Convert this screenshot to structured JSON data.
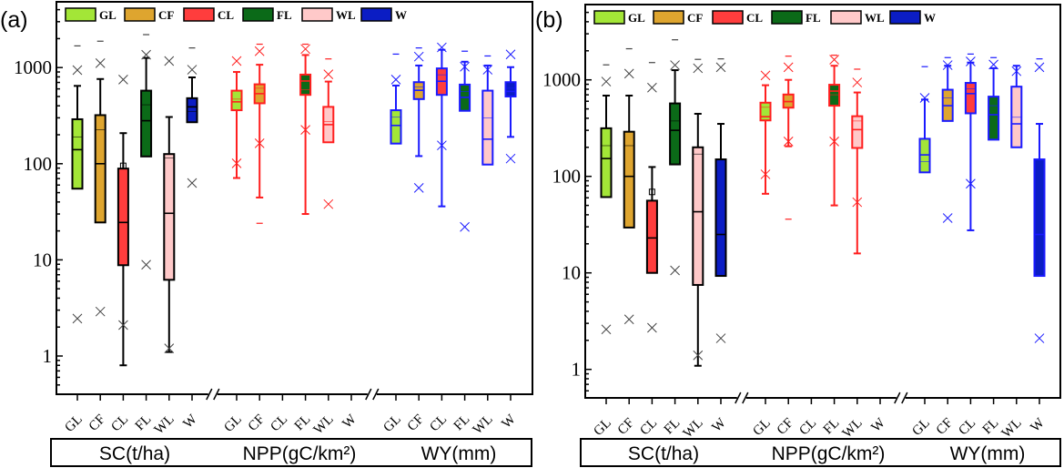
{
  "colors": {
    "GL": "#a3e637",
    "CF": "#dea52f",
    "CL": "#ff3d3d",
    "FL": "#0b6a18",
    "WL": "#ffc9c9",
    "W": "#0b1dc4"
  },
  "outline_colors": {
    "SC(t/ha)": "#000000",
    "NPP(gC/km²)": "#ff1f1f",
    "WY(mm)": "#1a1aff"
  },
  "legend": [
    "GL",
    "CF",
    "CL",
    "FL",
    "WL",
    "W"
  ],
  "chart_data": [
    {
      "type": "box",
      "panel_label": "(a)",
      "yscale": "log",
      "ylim": [
        0.4,
        5000
      ],
      "yticks": [
        "1",
        "10",
        "100",
        "1000"
      ],
      "legend_placement": "top",
      "groups": [
        {
          "label": "SC(t/ha)",
          "items": [
            {
              "category": "GL",
              "whisker_low": 55,
              "q1": 55,
              "median": 140,
              "mean": 190,
              "q3": 290,
              "whisker_high": 645,
              "x_marks": [
                940,
                2.45
              ],
              "dash_marks": [
                1680
              ]
            },
            {
              "category": "CF",
              "whisker_low": 24.5,
              "q1": 24.5,
              "median": 100,
              "mean": 225,
              "q3": 320,
              "whisker_high": 760,
              "x_marks": [
                1110,
                2.9
              ],
              "dash_marks": [
                1880
              ]
            },
            {
              "category": "CL",
              "whisker_low": 0.8,
              "q1": 8.8,
              "median": 24.5,
              "mean": 95,
              "q3": 89,
              "whisker_high": 208,
              "x_marks": [
                750,
                2.1
              ],
              "dash_marks": []
            },
            {
              "category": "FL",
              "whisker_low": 119,
              "q1": 119,
              "median": 280,
              "mean": 410,
              "q3": 575,
              "whisker_high": 1260,
              "x_marks": [
                1360,
                8.9
              ],
              "dash_marks": [
                2200
              ]
            },
            {
              "category": "WL",
              "whisker_low": 1.1,
              "q1": 6.2,
              "median": 30.5,
              "mean": 115,
              "q3": 126,
              "whisker_high": 306,
              "x_marks": [
                1170,
                1.2
              ],
              "dash_marks": []
            },
            {
              "category": "W",
              "whisker_low": 270,
              "q1": 270,
              "median": 390,
              "mean": 350,
              "q3": 480,
              "whisker_high": 790,
              "x_marks": [
                950,
                63
              ],
              "dash_marks": [
                1600
              ]
            }
          ]
        },
        {
          "label": "NPP(gC/km²)",
          "items": [
            {
              "category": "GL",
              "whisker_low": 71,
              "q1": 360,
              "median": 440,
              "mean": 470,
              "q3": 575,
              "whisker_high": 900,
              "x_marks": [
                1170,
                101
              ],
              "dash_marks": []
            },
            {
              "category": "CF",
              "whisker_low": 44.5,
              "q1": 425,
              "median": 535,
              "mean": 610,
              "q3": 670,
              "whisker_high": 1070,
              "x_marks": [
                1480,
                163
              ],
              "dash_marks": [
                1750,
                24
              ]
            },
            {
              "category": "CL"
            },
            {
              "category": "FL",
              "whisker_low": 30,
              "q1": 520,
              "median": 725,
              "mean": 590,
              "q3": 845,
              "whisker_high": 1350,
              "x_marks": [
                1560,
                225
              ],
              "dash_marks": [
                1750
              ]
            },
            {
              "category": "WL",
              "whisker_low": 167,
              "q1": 167,
              "median": 255,
              "mean": 275,
              "q3": 390,
              "whisker_high": 715,
              "x_marks": [
                850,
                38
              ],
              "dash_marks": [
                1230
              ]
            },
            {
              "category": "W"
            }
          ]
        },
        {
          "label": "WY(mm)",
          "items": [
            {
              "category": "GL",
              "whisker_low": 162,
              "q1": 162,
              "median": 250,
              "mean": 305,
              "q3": 360,
              "whisker_high": 650,
              "x_marks": [
                750
              ],
              "dash_marks": [
                1380
              ]
            },
            {
              "category": "CF",
              "whisker_low": 120,
              "q1": 470,
              "median": 580,
              "mean": 630,
              "q3": 705,
              "whisker_high": 1050,
              "x_marks": [
                1300,
                56
              ],
              "dash_marks": [
                1600
              ]
            },
            {
              "category": "CL",
              "whisker_low": 36,
              "q1": 520,
              "median": 720,
              "mean": 840,
              "q3": 980,
              "whisker_high": 1530,
              "x_marks": [
                1620,
                155
              ],
              "dash_marks": []
            },
            {
              "category": "FL",
              "whisker_low": 355,
              "q1": 355,
              "median": 490,
              "mean": 565,
              "q3": 665,
              "whisker_high": 1150,
              "x_marks": [
                1020,
                22
              ],
              "dash_marks": [
                1480
              ]
            },
            {
              "category": "WL",
              "whisker_low": 98,
              "q1": 98,
              "median": 180,
              "mean": 300,
              "q3": 575,
              "whisker_high": 1050,
              "x_marks": [
                950
              ],
              "dash_marks": [
                1320
              ]
            },
            {
              "category": "W",
              "whisker_low": 190,
              "q1": 500,
              "median": 565,
              "mean": 610,
              "q3": 705,
              "whisker_high": 1010,
              "x_marks": [
                1370,
                113
              ],
              "dash_marks": []
            }
          ]
        }
      ]
    },
    {
      "type": "box",
      "panel_label": "(b)",
      "yscale": "log",
      "ylim": [
        0.4,
        5000
      ],
      "yticks": [
        "1",
        "10",
        "100",
        "1000"
      ],
      "legend_placement": "top",
      "groups": [
        {
          "label": "SC(t/ha)",
          "items": [
            {
              "category": "GL",
              "whisker_low": 61,
              "q1": 61,
              "median": 153,
              "mean": 208,
              "q3": 315,
              "whisker_high": 687,
              "x_marks": [
                960,
                2.6
              ],
              "dash_marks": [
                1430
              ]
            },
            {
              "category": "CF",
              "whisker_low": 29.5,
              "q1": 29.5,
              "median": 100,
              "mean": 208,
              "q3": 290,
              "whisker_high": 687,
              "x_marks": [
                1160,
                3.3
              ],
              "dash_marks": [
                2100
              ]
            },
            {
              "category": "CL",
              "whisker_low": 10,
              "q1": 10,
              "median": 23,
              "mean": 69,
              "q3": 56,
              "whisker_high": 125,
              "x_marks": [
                830,
                2.7
              ],
              "dash_marks": [
                1510
              ]
            },
            {
              "category": "FL",
              "whisker_low": 133,
              "q1": 133,
              "median": 300,
              "mean": 375,
              "q3": 570,
              "whisker_high": 1260,
              "x_marks": [
                1420,
                10.6
              ],
              "dash_marks": [
                2600
              ]
            },
            {
              "category": "WL",
              "whisker_low": 1.09,
              "q1": 7.5,
              "median": 43,
              "mean": 170,
              "q3": 200,
              "whisker_high": 445,
              "x_marks": [
                1320,
                1.4
              ],
              "dash_marks": [
                1630
              ]
            },
            {
              "category": "W",
              "whisker_low": 9.3,
              "q1": 9.3,
              "median": 25,
              "mean": 148,
              "q3": 150,
              "whisker_high": 350,
              "x_marks": [
                1350,
                2.1
              ],
              "dash_marks": [
                1650
              ]
            }
          ]
        },
        {
          "label": "NPP(gC/km²)",
          "items": [
            {
              "category": "GL",
              "whisker_low": 66,
              "q1": 380,
              "median": 415,
              "mean": 520,
              "q3": 580,
              "whisker_high": 880,
              "x_marks": [
                1110,
                105
              ],
              "dash_marks": []
            },
            {
              "category": "CF",
              "whisker_low": 205,
              "q1": 515,
              "median": 595,
              "mean": 600,
              "q3": 705,
              "whisker_high": 1000,
              "x_marks": [
                1350,
                230
              ],
              "dash_marks": [
                1760,
                36
              ]
            },
            {
              "category": "CL"
            },
            {
              "category": "FL",
              "whisker_low": 50,
              "q1": 540,
              "median": 765,
              "mean": 700,
              "q3": 890,
              "whisker_high": 1400,
              "x_marks": [
                1620,
                230
              ],
              "dash_marks": [
                1800
              ]
            },
            {
              "category": "WL",
              "whisker_low": 15.9,
              "q1": 197,
              "median": 305,
              "mean": 375,
              "q3": 420,
              "whisker_high": 740,
              "x_marks": [
                940,
                54
              ],
              "dash_marks": [
                1290
              ]
            },
            {
              "category": "W"
            }
          ]
        },
        {
          "label": "WY(mm)",
          "items": [
            {
              "category": "GL",
              "whisker_low": 110,
              "q1": 110,
              "median": 167,
              "mean": 142,
              "q3": 245,
              "whisker_high": 625,
              "x_marks": [
                650
              ],
              "dash_marks": [
                1370
              ]
            },
            {
              "category": "CF",
              "whisker_low": 375,
              "q1": 375,
              "median": 540,
              "mean": 650,
              "q3": 790,
              "whisker_high": 1400,
              "x_marks": [
                1420,
                37
              ],
              "dash_marks": [
                1700
              ]
            },
            {
              "category": "CL",
              "whisker_low": 27.6,
              "q1": 450,
              "median": 720,
              "mean": 810,
              "q3": 930,
              "whisker_high": 1510,
              "x_marks": [
                1550,
                84
              ],
              "dash_marks": [
                1850
              ]
            },
            {
              "category": "FL",
              "whisker_low": 240,
              "q1": 240,
              "median": 435,
              "mean": 540,
              "q3": 670,
              "whisker_high": 1320,
              "x_marks": [
                1440
              ],
              "dash_marks": [
                1700
              ]
            },
            {
              "category": "WL",
              "whisker_low": 200,
              "q1": 200,
              "median": 350,
              "mean": 410,
              "q3": 850,
              "whisker_high": 1400,
              "x_marks": [
                1230
              ],
              "dash_marks": []
            },
            {
              "category": "W",
              "whisker_low": 9.3,
              "q1": 9.3,
              "median": 25,
              "mean": 148,
              "q3": 150,
              "whisker_high": 350,
              "x_marks": [
                1350,
                2.1
              ],
              "dash_marks": [
                1650
              ]
            }
          ]
        }
      ]
    }
  ]
}
